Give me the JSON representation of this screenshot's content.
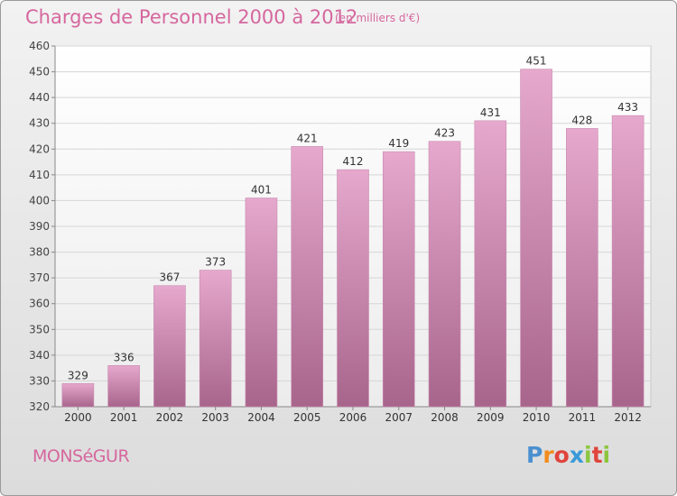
{
  "header": {
    "title": "Charges de Personnel 2000 à 2012",
    "subtitle": "(en milliers d'€)"
  },
  "footer": {
    "commune": "MONSéGUR",
    "logo_letters": [
      "P",
      "r",
      "o",
      "x",
      "i",
      "t",
      "i"
    ],
    "logo_colors": [
      "#4a90d0",
      "#f28c1e",
      "#e0453c",
      "#3a9ad9",
      "#8cc63f",
      "#e0453c",
      "#8cc63f"
    ]
  },
  "colors": {
    "bar_top": "#e6a8cd",
    "bar_bottom": "#a8658c",
    "title": "#d6679e"
  },
  "chart_data": {
    "type": "bar",
    "title": "Charges de Personnel 2000 à 2012",
    "categories": [
      "2000",
      "2001",
      "2002",
      "2003",
      "2004",
      "2005",
      "2006",
      "2007",
      "2008",
      "2009",
      "2010",
      "2011",
      "2012"
    ],
    "values": [
      329,
      336,
      367,
      373,
      401,
      421,
      412,
      419,
      423,
      431,
      451,
      428,
      433
    ],
    "ylim": [
      320,
      460
    ],
    "yticks": [
      320,
      330,
      340,
      350,
      360,
      370,
      380,
      390,
      400,
      410,
      420,
      430,
      440,
      450,
      460
    ],
    "grid": true,
    "xlabel": "",
    "ylabel": ""
  }
}
